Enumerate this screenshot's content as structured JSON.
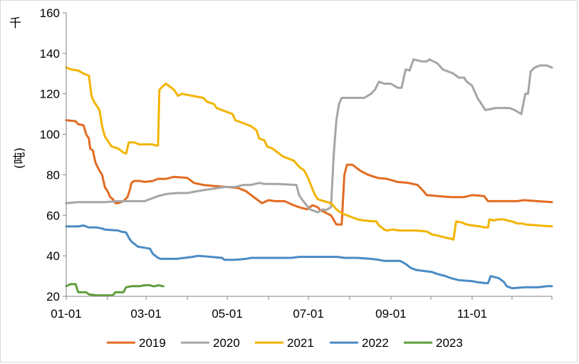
{
  "chart_data": {
    "type": "line",
    "title": "",
    "xlabel": "",
    "ylabel": "(吨)",
    "unit_label": "千",
    "ylim": [
      20,
      160
    ],
    "yticks": [
      20,
      40,
      60,
      80,
      100,
      120,
      140,
      160
    ],
    "xlim": [
      1,
      366
    ],
    "xticks": [
      {
        "label": "01-01",
        "day": 1
      },
      {
        "label": "03-01",
        "day": 61
      },
      {
        "label": "05-01",
        "day": 122
      },
      {
        "label": "07-01",
        "day": 183
      },
      {
        "label": "09-01",
        "day": 245
      },
      {
        "label": "11-01",
        "day": 306
      }
    ],
    "grid": false,
    "legend": "bottom",
    "series": [
      {
        "name": "2019",
        "color": "#e26b21",
        "points": [
          [
            1,
            107
          ],
          [
            8,
            106.5
          ],
          [
            10,
            105
          ],
          [
            14,
            104.5
          ],
          [
            16,
            100
          ],
          [
            18,
            98
          ],
          [
            19,
            93
          ],
          [
            21,
            92
          ],
          [
            23,
            86
          ],
          [
            26,
            82
          ],
          [
            28,
            80
          ],
          [
            30,
            74
          ],
          [
            32,
            72
          ],
          [
            34,
            69
          ],
          [
            36,
            68
          ],
          [
            38,
            66
          ],
          [
            40,
            66
          ],
          [
            44,
            67
          ],
          [
            47,
            69
          ],
          [
            49,
            73
          ],
          [
            50,
            76
          ],
          [
            52,
            77
          ],
          [
            56,
            77
          ],
          [
            60,
            76.5
          ],
          [
            66,
            77
          ],
          [
            70,
            78
          ],
          [
            76,
            78
          ],
          [
            82,
            79
          ],
          [
            92,
            78.5
          ],
          [
            97,
            76
          ],
          [
            104,
            75
          ],
          [
            112,
            74.5
          ],
          [
            122,
            74
          ],
          [
            130,
            73.5
          ],
          [
            136,
            72
          ],
          [
            140,
            70
          ],
          [
            144,
            68
          ],
          [
            148,
            66
          ],
          [
            153,
            67.5
          ],
          [
            158,
            67
          ],
          [
            165,
            67
          ],
          [
            172,
            65
          ],
          [
            176,
            64
          ],
          [
            182,
            63
          ],
          [
            186,
            65
          ],
          [
            190,
            64
          ],
          [
            192,
            62.5
          ],
          [
            200,
            60
          ],
          [
            204,
            55.5
          ],
          [
            208,
            55.5
          ],
          [
            210,
            80
          ],
          [
            212,
            85
          ],
          [
            216,
            85
          ],
          [
            222,
            82
          ],
          [
            228,
            80
          ],
          [
            235,
            78.5
          ],
          [
            242,
            78
          ],
          [
            250,
            76.5
          ],
          [
            258,
            76
          ],
          [
            265,
            75
          ],
          [
            268,
            73
          ],
          [
            272,
            70
          ],
          [
            280,
            69.5
          ],
          [
            290,
            69
          ],
          [
            300,
            69
          ],
          [
            306,
            70
          ],
          [
            315,
            69.5
          ],
          [
            318,
            67
          ],
          [
            325,
            67
          ],
          [
            340,
            67
          ],
          [
            345,
            67.5
          ],
          [
            355,
            67
          ],
          [
            366,
            66.5
          ]
        ]
      },
      {
        "name": "2020",
        "color": "#a5a5a5",
        "points": [
          [
            1,
            66
          ],
          [
            10,
            66.5
          ],
          [
            30,
            66.5
          ],
          [
            40,
            67
          ],
          [
            60,
            67
          ],
          [
            64,
            68
          ],
          [
            70,
            69.5
          ],
          [
            76,
            70.5
          ],
          [
            84,
            71
          ],
          [
            92,
            71
          ],
          [
            100,
            72
          ],
          [
            110,
            73
          ],
          [
            120,
            74
          ],
          [
            128,
            74
          ],
          [
            134,
            75
          ],
          [
            140,
            75
          ],
          [
            146,
            76
          ],
          [
            150,
            75.5
          ],
          [
            160,
            75.5
          ],
          [
            174,
            75
          ],
          [
            176,
            70
          ],
          [
            178,
            68
          ],
          [
            184,
            63
          ],
          [
            190,
            61.5
          ],
          [
            194,
            63
          ],
          [
            196,
            62.5
          ],
          [
            200,
            64
          ],
          [
            202,
            90
          ],
          [
            204,
            107
          ],
          [
            206,
            115
          ],
          [
            208,
            118
          ],
          [
            220,
            118
          ],
          [
            225,
            118
          ],
          [
            230,
            120
          ],
          [
            233,
            122
          ],
          [
            236,
            126
          ],
          [
            240,
            125
          ],
          [
            245,
            125
          ],
          [
            250,
            123
          ],
          [
            253,
            123
          ],
          [
            256,
            132
          ],
          [
            259,
            131.5
          ],
          [
            262,
            137
          ],
          [
            268,
            136
          ],
          [
            272,
            136
          ],
          [
            274,
            137
          ],
          [
            280,
            135
          ],
          [
            284,
            132
          ],
          [
            288,
            131
          ],
          [
            292,
            130
          ],
          [
            296,
            128
          ],
          [
            300,
            128
          ],
          [
            302,
            126
          ],
          [
            306,
            124
          ],
          [
            310,
            118
          ],
          [
            316,
            112
          ],
          [
            320,
            112.5
          ],
          [
            324,
            113
          ],
          [
            334,
            113
          ],
          [
            338,
            112
          ],
          [
            343,
            110
          ],
          [
            346,
            120
          ],
          [
            348,
            120
          ],
          [
            350,
            131
          ],
          [
            353,
            133
          ],
          [
            357,
            134
          ],
          [
            362,
            134
          ],
          [
            366,
            133
          ]
        ]
      },
      {
        "name": "2021",
        "color": "#f2b400",
        "points": [
          [
            1,
            133
          ],
          [
            5,
            132
          ],
          [
            10,
            131.5
          ],
          [
            14,
            130
          ],
          [
            18,
            129
          ],
          [
            20,
            119
          ],
          [
            22,
            116
          ],
          [
            24,
            114
          ],
          [
            26,
            112
          ],
          [
            28,
            104
          ],
          [
            30,
            99
          ],
          [
            33,
            96
          ],
          [
            35,
            94
          ],
          [
            40,
            93
          ],
          [
            44,
            91
          ],
          [
            46,
            90.5
          ],
          [
            48,
            96
          ],
          [
            52,
            96
          ],
          [
            56,
            95
          ],
          [
            62,
            95
          ],
          [
            66,
            95
          ],
          [
            68,
            94.5
          ],
          [
            70,
            94.5
          ],
          [
            71,
            122
          ],
          [
            74,
            124
          ],
          [
            76,
            125
          ],
          [
            82,
            122
          ],
          [
            85,
            119
          ],
          [
            88,
            120
          ],
          [
            96,
            119
          ],
          [
            104,
            118
          ],
          [
            107,
            116
          ],
          [
            112,
            115
          ],
          [
            114,
            113
          ],
          [
            118,
            112
          ],
          [
            122,
            111
          ],
          [
            126,
            110
          ],
          [
            128,
            107
          ],
          [
            132,
            106
          ],
          [
            136,
            105
          ],
          [
            140,
            104
          ],
          [
            144,
            102
          ],
          [
            146,
            98
          ],
          [
            150,
            97
          ],
          [
            152,
            94
          ],
          [
            156,
            93
          ],
          [
            160,
            91
          ],
          [
            164,
            89
          ],
          [
            168,
            88
          ],
          [
            172,
            87
          ],
          [
            176,
            84
          ],
          [
            180,
            82
          ],
          [
            183,
            78
          ],
          [
            186,
            73
          ],
          [
            188,
            70
          ],
          [
            190,
            68
          ],
          [
            192,
            67.5
          ],
          [
            200,
            66
          ],
          [
            204,
            63
          ],
          [
            208,
            61
          ],
          [
            212,
            60
          ],
          [
            216,
            59
          ],
          [
            220,
            58
          ],
          [
            224,
            57.5
          ],
          [
            232,
            57
          ],
          [
            234,
            57
          ],
          [
            236,
            55
          ],
          [
            240,
            53
          ],
          [
            242,
            52.5
          ],
          [
            246,
            53
          ],
          [
            252,
            52.5
          ],
          [
            264,
            52.5
          ],
          [
            272,
            52
          ],
          [
            276,
            50.5
          ],
          [
            280,
            50
          ],
          [
            286,
            49
          ],
          [
            290,
            48.5
          ],
          [
            292,
            48
          ],
          [
            294,
            57
          ],
          [
            298,
            56.5
          ],
          [
            302,
            55.5
          ],
          [
            306,
            55
          ],
          [
            312,
            54.5
          ],
          [
            316,
            54
          ],
          [
            318,
            54
          ],
          [
            319,
            58
          ],
          [
            322,
            57.5
          ],
          [
            326,
            58
          ],
          [
            330,
            58
          ],
          [
            332,
            57.5
          ],
          [
            336,
            57
          ],
          [
            340,
            56
          ],
          [
            344,
            56
          ],
          [
            346,
            55.5
          ],
          [
            356,
            55
          ],
          [
            366,
            54.5
          ]
        ]
      },
      {
        "name": "2022",
        "color": "#4a8ac4",
        "points": [
          [
            1,
            54.5
          ],
          [
            10,
            54.5
          ],
          [
            14,
            55
          ],
          [
            18,
            54
          ],
          [
            24,
            54
          ],
          [
            28,
            53.5
          ],
          [
            30,
            53
          ],
          [
            40,
            52.5
          ],
          [
            42,
            52
          ],
          [
            46,
            51.5
          ],
          [
            48,
            49
          ],
          [
            50,
            47
          ],
          [
            52,
            46
          ],
          [
            55,
            44.5
          ],
          [
            60,
            44
          ],
          [
            64,
            43.5
          ],
          [
            66,
            41
          ],
          [
            70,
            39
          ],
          [
            72,
            38.5
          ],
          [
            84,
            38.5
          ],
          [
            90,
            39
          ],
          [
            96,
            39.5
          ],
          [
            100,
            40
          ],
          [
            110,
            39.5
          ],
          [
            118,
            39
          ],
          [
            120,
            38
          ],
          [
            128,
            38
          ],
          [
            136,
            38.5
          ],
          [
            140,
            39
          ],
          [
            150,
            39
          ],
          [
            160,
            39
          ],
          [
            170,
            39
          ],
          [
            176,
            39.5
          ],
          [
            188,
            39.5
          ],
          [
            200,
            39.5
          ],
          [
            205,
            39.5
          ],
          [
            210,
            39
          ],
          [
            220,
            39
          ],
          [
            230,
            38.5
          ],
          [
            236,
            38
          ],
          [
            240,
            37.5
          ],
          [
            252,
            37.5
          ],
          [
            256,
            36
          ],
          [
            260,
            34
          ],
          [
            264,
            33
          ],
          [
            270,
            32.5
          ],
          [
            276,
            32
          ],
          [
            280,
            31
          ],
          [
            286,
            30
          ],
          [
            290,
            29
          ],
          [
            296,
            28
          ],
          [
            306,
            27.5
          ],
          [
            310,
            27
          ],
          [
            316,
            26.5
          ],
          [
            318,
            26.5
          ],
          [
            320,
            30
          ],
          [
            326,
            29
          ],
          [
            330,
            27
          ],
          [
            332,
            25
          ],
          [
            336,
            24
          ],
          [
            346,
            24.5
          ],
          [
            356,
            24.5
          ],
          [
            362,
            25
          ],
          [
            366,
            25
          ]
        ]
      },
      {
        "name": "2023",
        "color": "#5e9e3c",
        "points": [
          [
            1,
            25
          ],
          [
            4,
            26
          ],
          [
            8,
            26
          ],
          [
            10,
            22
          ],
          [
            16,
            22
          ],
          [
            18,
            21
          ],
          [
            24,
            20.5
          ],
          [
            34,
            20.5
          ],
          [
            36,
            20.5
          ],
          [
            38,
            22
          ],
          [
            44,
            22
          ],
          [
            46,
            24.5
          ],
          [
            50,
            25
          ],
          [
            56,
            25
          ],
          [
            60,
            25.5
          ],
          [
            64,
            25.5
          ],
          [
            66,
            25
          ],
          [
            68,
            25
          ],
          [
            70,
            25.5
          ],
          [
            74,
            25
          ]
        ]
      }
    ]
  }
}
